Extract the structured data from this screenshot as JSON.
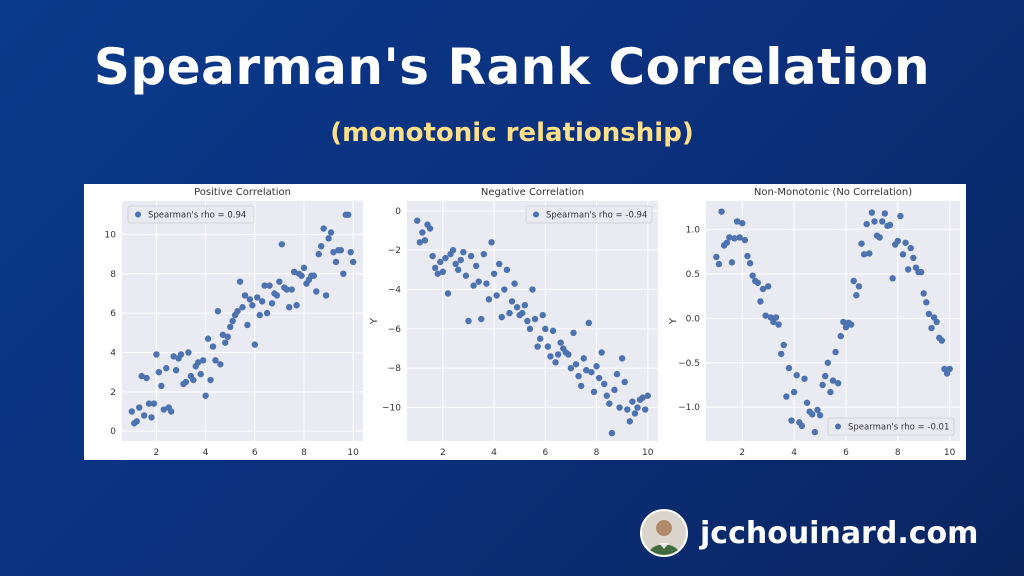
{
  "header": {
    "title": "Spearman's Rank Correlation",
    "subtitle": "(monotonic relationship)"
  },
  "brand": {
    "site": "jcchouinard.com",
    "avatar_icon": "person-avatar-icon"
  },
  "colors": {
    "background": "#0b2f7a",
    "title": "#ffffff",
    "subtitle": "#ffe08a",
    "plot_bg": "#eaeaf2",
    "point": "#4c72b0"
  },
  "chart_data": [
    {
      "type": "scatter",
      "title": "Positive Correlation",
      "xlabel": "",
      "ylabel": "",
      "xlim": [
        0.6,
        10.4
      ],
      "ylim": [
        -0.5,
        11.7
      ],
      "xticks": [
        2,
        4,
        6,
        8,
        10
      ],
      "yticks": [
        0,
        2,
        4,
        6,
        8,
        10
      ],
      "legend_text": "Spearman's rho = 0.94",
      "legend_position": "top-left",
      "grid": true,
      "points": [
        [
          1.0,
          1.0
        ],
        [
          1.1,
          0.4
        ],
        [
          1.2,
          0.5
        ],
        [
          1.3,
          1.2
        ],
        [
          1.4,
          2.8
        ],
        [
          1.5,
          0.8
        ],
        [
          1.6,
          2.7
        ],
        [
          1.7,
          1.4
        ],
        [
          1.8,
          0.7
        ],
        [
          1.9,
          1.4
        ],
        [
          2.0,
          3.9
        ],
        [
          2.1,
          3.0
        ],
        [
          2.2,
          2.3
        ],
        [
          2.3,
          1.1
        ],
        [
          2.4,
          3.2
        ],
        [
          2.5,
          1.2
        ],
        [
          2.6,
          1.0
        ],
        [
          2.7,
          3.8
        ],
        [
          2.8,
          3.1
        ],
        [
          2.9,
          3.7
        ],
        [
          3.0,
          3.9
        ],
        [
          3.1,
          2.4
        ],
        [
          3.2,
          2.5
        ],
        [
          3.3,
          4.0
        ],
        [
          3.4,
          2.8
        ],
        [
          3.5,
          2.6
        ],
        [
          3.6,
          3.3
        ],
        [
          3.7,
          3.5
        ],
        [
          3.8,
          2.9
        ],
        [
          3.9,
          3.6
        ],
        [
          4.0,
          1.8
        ],
        [
          4.1,
          4.7
        ],
        [
          4.2,
          2.6
        ],
        [
          4.3,
          4.3
        ],
        [
          4.4,
          3.6
        ],
        [
          4.5,
          6.1
        ],
        [
          4.6,
          3.4
        ],
        [
          4.7,
          4.9
        ],
        [
          4.8,
          4.5
        ],
        [
          4.9,
          4.8
        ],
        [
          5.0,
          5.3
        ],
        [
          5.1,
          5.6
        ],
        [
          5.2,
          5.9
        ],
        [
          5.3,
          6.1
        ],
        [
          5.4,
          7.6
        ],
        [
          5.5,
          6.3
        ],
        [
          5.6,
          6.9
        ],
        [
          5.7,
          5.4
        ],
        [
          5.8,
          6.7
        ],
        [
          5.9,
          6.4
        ],
        [
          6.0,
          4.4
        ],
        [
          6.1,
          6.8
        ],
        [
          6.2,
          5.9
        ],
        [
          6.3,
          6.6
        ],
        [
          6.4,
          7.4
        ],
        [
          6.5,
          6.0
        ],
        [
          6.6,
          7.4
        ],
        [
          6.7,
          6.5
        ],
        [
          6.8,
          7.0
        ],
        [
          6.9,
          6.9
        ],
        [
          7.0,
          7.6
        ],
        [
          7.1,
          9.5
        ],
        [
          7.2,
          7.3
        ],
        [
          7.3,
          7.2
        ],
        [
          7.4,
          6.3
        ],
        [
          7.5,
          7.2
        ],
        [
          7.6,
          8.1
        ],
        [
          7.7,
          6.4
        ],
        [
          7.8,
          8.0
        ],
        [
          7.9,
          7.9
        ],
        [
          8.0,
          8.3
        ],
        [
          8.1,
          7.5
        ],
        [
          8.2,
          7.7
        ],
        [
          8.3,
          7.9
        ],
        [
          8.4,
          7.9
        ],
        [
          8.5,
          7.1
        ],
        [
          8.6,
          9.0
        ],
        [
          8.7,
          9.4
        ],
        [
          8.8,
          10.3
        ],
        [
          8.9,
          6.9
        ],
        [
          9.0,
          9.8
        ],
        [
          9.1,
          10.1
        ],
        [
          9.2,
          9.1
        ],
        [
          9.3,
          8.6
        ],
        [
          9.4,
          9.2
        ],
        [
          9.5,
          9.2
        ],
        [
          9.6,
          8.0
        ],
        [
          9.7,
          11.0
        ],
        [
          9.8,
          11.0
        ],
        [
          9.9,
          9.1
        ],
        [
          10.0,
          8.6
        ]
      ]
    },
    {
      "type": "scatter",
      "title": "Negative Correlation",
      "xlabel": "",
      "ylabel": "Y",
      "xlim": [
        0.6,
        10.4
      ],
      "ylim": [
        -11.7,
        0.5
      ],
      "xticks": [
        2,
        4,
        6,
        8,
        10
      ],
      "yticks": [
        0,
        -2,
        -4,
        -6,
        -8,
        -10
      ],
      "legend_text": "Spearman's rho = -0.94",
      "legend_position": "top-right",
      "grid": true,
      "points": [
        [
          1.0,
          -0.5
        ],
        [
          1.1,
          -1.6
        ],
        [
          1.2,
          -1.1
        ],
        [
          1.3,
          -1.5
        ],
        [
          1.4,
          -0.7
        ],
        [
          1.5,
          -0.9
        ],
        [
          1.6,
          -2.3
        ],
        [
          1.7,
          -2.9
        ],
        [
          1.8,
          -3.2
        ],
        [
          1.9,
          -2.6
        ],
        [
          2.0,
          -3.1
        ],
        [
          2.1,
          -2.4
        ],
        [
          2.2,
          -4.2
        ],
        [
          2.3,
          -2.2
        ],
        [
          2.4,
          -2.0
        ],
        [
          2.5,
          -2.7
        ],
        [
          2.6,
          -3.0
        ],
        [
          2.7,
          -2.5
        ],
        [
          2.8,
          -2.1
        ],
        [
          2.9,
          -3.3
        ],
        [
          3.0,
          -5.6
        ],
        [
          3.1,
          -2.3
        ],
        [
          3.2,
          -3.8
        ],
        [
          3.3,
          -2.8
        ],
        [
          3.4,
          -3.6
        ],
        [
          3.5,
          -5.5
        ],
        [
          3.6,
          -2.2
        ],
        [
          3.7,
          -3.7
        ],
        [
          3.8,
          -4.5
        ],
        [
          3.9,
          -1.6
        ],
        [
          4.0,
          -3.2
        ],
        [
          4.1,
          -4.3
        ],
        [
          4.2,
          -2.7
        ],
        [
          4.3,
          -5.4
        ],
        [
          4.4,
          -4.0
        ],
        [
          4.5,
          -3.0
        ],
        [
          4.6,
          -5.2
        ],
        [
          4.7,
          -4.6
        ],
        [
          4.8,
          -3.7
        ],
        [
          4.9,
          -4.9
        ],
        [
          5.0,
          -5.3
        ],
        [
          5.1,
          -5.2
        ],
        [
          5.2,
          -4.8
        ],
        [
          5.3,
          -5.6
        ],
        [
          5.4,
          -6.0
        ],
        [
          5.5,
          -4.0
        ],
        [
          5.6,
          -5.5
        ],
        [
          5.7,
          -6.9
        ],
        [
          5.8,
          -6.5
        ],
        [
          5.9,
          -5.3
        ],
        [
          6.0,
          -6.0
        ],
        [
          6.1,
          -6.9
        ],
        [
          6.2,
          -7.4
        ],
        [
          6.3,
          -6.1
        ],
        [
          6.4,
          -7.7
        ],
        [
          6.5,
          -7.3
        ],
        [
          6.6,
          -6.7
        ],
        [
          6.7,
          -7.0
        ],
        [
          6.8,
          -7.2
        ],
        [
          6.9,
          -7.3
        ],
        [
          7.0,
          -8.0
        ],
        [
          7.1,
          -6.2
        ],
        [
          7.2,
          -7.8
        ],
        [
          7.3,
          -8.4
        ],
        [
          7.4,
          -8.9
        ],
        [
          7.5,
          -7.5
        ],
        [
          7.6,
          -8.1
        ],
        [
          7.7,
          -5.7
        ],
        [
          7.8,
          -8.2
        ],
        [
          7.9,
          -9.2
        ],
        [
          8.0,
          -7.9
        ],
        [
          8.1,
          -8.5
        ],
        [
          8.2,
          -7.2
        ],
        [
          8.3,
          -8.8
        ],
        [
          8.4,
          -9.4
        ],
        [
          8.5,
          -9.8
        ],
        [
          8.6,
          -11.3
        ],
        [
          8.7,
          -9.1
        ],
        [
          8.8,
          -8.3
        ],
        [
          8.9,
          -10.0
        ],
        [
          9.0,
          -7.5
        ],
        [
          9.1,
          -8.7
        ],
        [
          9.2,
          -10.1
        ],
        [
          9.3,
          -10.7
        ],
        [
          9.4,
          -9.7
        ],
        [
          9.5,
          -10.3
        ],
        [
          9.6,
          -10.0
        ],
        [
          9.7,
          -9.6
        ],
        [
          9.8,
          -9.5
        ],
        [
          9.9,
          -10.1
        ],
        [
          10.0,
          -9.4
        ]
      ]
    },
    {
      "type": "scatter",
      "title": "Non-Monotonic (No Correlation)",
      "xlabel": "",
      "ylabel": "Y",
      "xlim": [
        0.6,
        10.4
      ],
      "ylim": [
        -1.38,
        1.32
      ],
      "xticks": [
        2,
        4,
        6,
        8,
        10
      ],
      "yticks": [
        1.0,
        0.5,
        0.0,
        -0.5,
        -1.0
      ],
      "legend_text": "Spearman's rho = -0.01",
      "legend_position": "bottom-right",
      "grid": true,
      "points": [
        [
          1.0,
          0.69
        ],
        [
          1.1,
          0.61
        ],
        [
          1.2,
          1.2
        ],
        [
          1.3,
          0.82
        ],
        [
          1.4,
          0.85
        ],
        [
          1.5,
          0.91
        ],
        [
          1.6,
          0.63
        ],
        [
          1.7,
          0.9
        ],
        [
          1.8,
          1.09
        ],
        [
          1.9,
          0.91
        ],
        [
          2.0,
          1.07
        ],
        [
          2.1,
          0.88
        ],
        [
          2.2,
          0.7
        ],
        [
          2.3,
          0.62
        ],
        [
          2.4,
          0.48
        ],
        [
          2.5,
          0.42
        ],
        [
          2.6,
          0.4
        ],
        [
          2.7,
          0.19
        ],
        [
          2.8,
          0.33
        ],
        [
          2.9,
          0.03
        ],
        [
          3.0,
          0.36
        ],
        [
          3.1,
          0.01
        ],
        [
          3.2,
          -0.04
        ],
        [
          3.3,
          0.01
        ],
        [
          3.4,
          -0.07
        ],
        [
          3.5,
          -0.4
        ],
        [
          3.6,
          -0.3
        ],
        [
          3.7,
          -0.88
        ],
        [
          3.8,
          -0.56
        ],
        [
          3.9,
          -1.15
        ],
        [
          4.0,
          -0.83
        ],
        [
          4.1,
          -0.64
        ],
        [
          4.2,
          -1.17
        ],
        [
          4.3,
          -1.21
        ],
        [
          4.4,
          -0.68
        ],
        [
          4.5,
          -0.95
        ],
        [
          4.6,
          -1.05
        ],
        [
          4.7,
          -1.08
        ],
        [
          4.8,
          -1.28
        ],
        [
          4.9,
          -1.03
        ],
        [
          5.0,
          -1.09
        ],
        [
          5.1,
          -0.75
        ],
        [
          5.2,
          -0.65
        ],
        [
          5.3,
          -0.5
        ],
        [
          5.4,
          -0.83
        ],
        [
          5.5,
          -0.7
        ],
        [
          5.6,
          -0.38
        ],
        [
          5.7,
          -0.73
        ],
        [
          5.8,
          -0.2
        ],
        [
          5.9,
          -0.04
        ],
        [
          6.0,
          -0.1
        ],
        [
          6.1,
          -0.05
        ],
        [
          6.2,
          -0.07
        ],
        [
          6.3,
          0.42
        ],
        [
          6.4,
          0.26
        ],
        [
          6.5,
          0.36
        ],
        [
          6.6,
          0.84
        ],
        [
          6.7,
          0.72
        ],
        [
          6.8,
          1.06
        ],
        [
          6.9,
          0.73
        ],
        [
          7.0,
          1.19
        ],
        [
          7.1,
          1.09
        ],
        [
          7.2,
          0.93
        ],
        [
          7.3,
          0.91
        ],
        [
          7.4,
          1.09
        ],
        [
          7.5,
          1.18
        ],
        [
          7.6,
          1.04
        ],
        [
          7.7,
          1.05
        ],
        [
          7.8,
          0.45
        ],
        [
          7.9,
          0.83
        ],
        [
          8.0,
          0.87
        ],
        [
          8.1,
          1.15
        ],
        [
          8.2,
          0.72
        ],
        [
          8.3,
          0.85
        ],
        [
          8.4,
          0.55
        ],
        [
          8.5,
          0.79
        ],
        [
          8.6,
          0.68
        ],
        [
          8.7,
          0.57
        ],
        [
          8.8,
          0.52
        ],
        [
          8.9,
          0.52
        ],
        [
          9.0,
          0.28
        ],
        [
          9.1,
          0.18
        ],
        [
          9.2,
          0.05
        ],
        [
          9.3,
          -0.11
        ],
        [
          9.4,
          0.01
        ],
        [
          9.5,
          -0.04
        ],
        [
          9.6,
          -0.22
        ],
        [
          9.7,
          -0.25
        ],
        [
          9.8,
          -0.57
        ],
        [
          9.9,
          -0.62
        ],
        [
          10.0,
          -0.57
        ]
      ]
    }
  ]
}
